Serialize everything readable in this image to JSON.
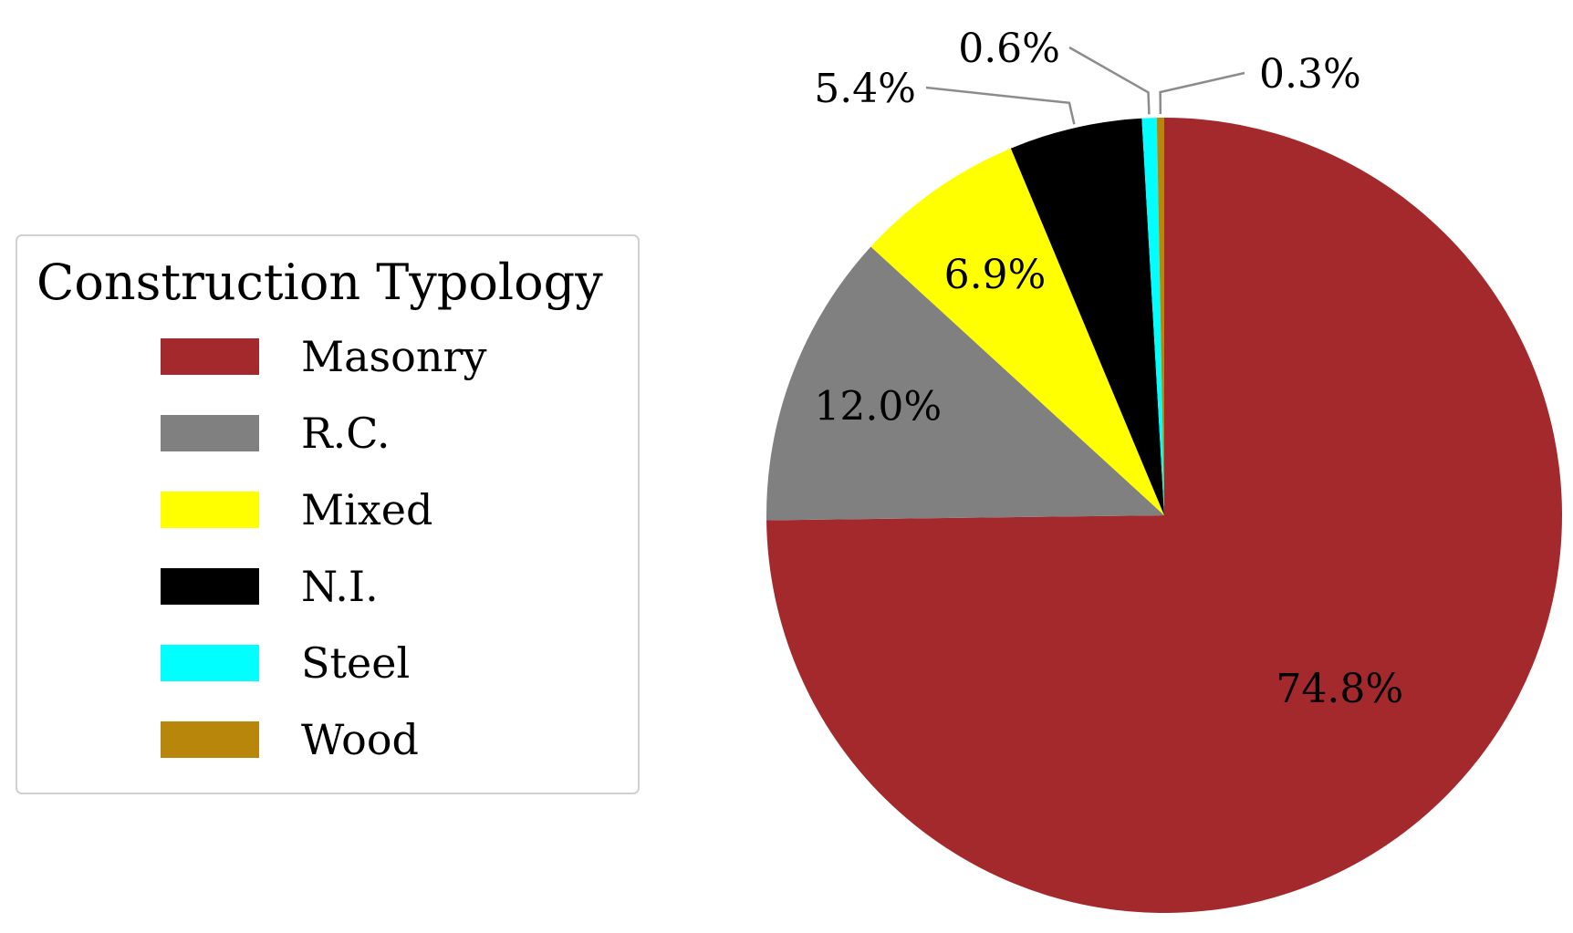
{
  "chart_data": {
    "type": "pie",
    "title": "",
    "legend": {
      "title": "Construction Typology",
      "placement": "left"
    },
    "categories": [
      "Masonry",
      "R.C.",
      "Mixed",
      "N.I.",
      "Steel",
      "Wood"
    ],
    "values": [
      74.8,
      12.0,
      6.9,
      5.4,
      0.6,
      0.3
    ],
    "data_labels": [
      "74.8%",
      "12.0%",
      "6.9%",
      "5.4%",
      "0.6%",
      "0.3%"
    ],
    "colors": [
      "#a4292c",
      "#808080",
      "#ffff00",
      "#000000",
      "#00ffff",
      "#b8860b"
    ],
    "start": "12 o'clock",
    "direction": "clockwise"
  }
}
